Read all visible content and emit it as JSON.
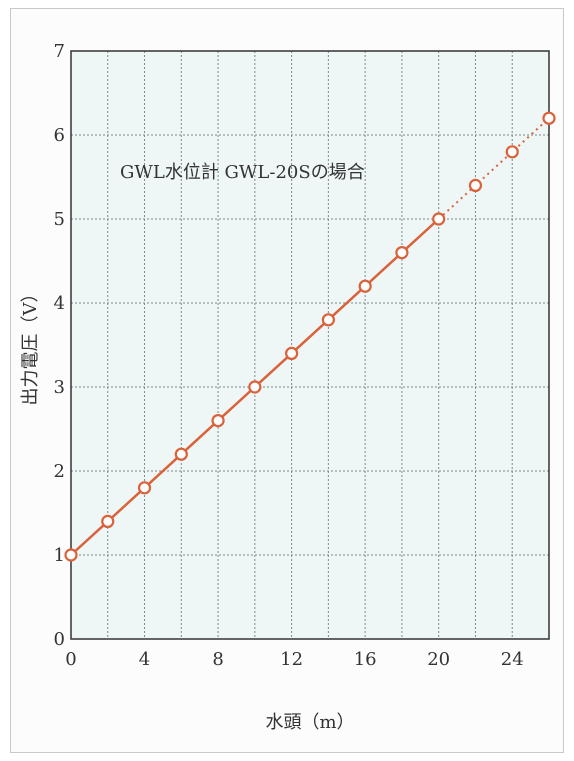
{
  "chart_data": {
    "type": "line",
    "title": "",
    "annotation": "GWL水位計 GWL-20Sの場合",
    "xlabel": "水頭（m）",
    "ylabel": "出力電圧（V）",
    "xlim": [
      0,
      26
    ],
    "ylim": [
      0,
      7
    ],
    "xticks": [
      0,
      4,
      8,
      12,
      16,
      20,
      24
    ],
    "xtick_labels": [
      "0",
      "4",
      "8",
      "12",
      "16",
      "20",
      "24"
    ],
    "yticks": [
      0,
      1,
      2,
      3,
      4,
      5,
      6,
      7
    ],
    "ytick_labels": [
      "0",
      "1",
      "2",
      "3",
      "4",
      "5",
      "6",
      "7"
    ],
    "grid": true,
    "legend": "none",
    "series": [
      {
        "style": "solid",
        "color": "#d9623a",
        "x": [
          0,
          2,
          4,
          6,
          8,
          10,
          12,
          14,
          16,
          18,
          20
        ],
        "y": [
          1.0,
          1.4,
          1.8,
          2.2,
          2.6,
          3.0,
          3.4,
          3.8,
          4.2,
          4.6,
          5.0
        ]
      },
      {
        "style": "dotted",
        "color": "#d9623a",
        "x": [
          20,
          22,
          24,
          26
        ],
        "y": [
          5.0,
          5.4,
          5.8,
          6.2
        ]
      }
    ],
    "colors": {
      "plot_background": "#eef6f6",
      "grid": "#7a8a8a",
      "axis": "#333333",
      "marker_fill": "#ffffff",
      "series": "#d9623a"
    }
  }
}
